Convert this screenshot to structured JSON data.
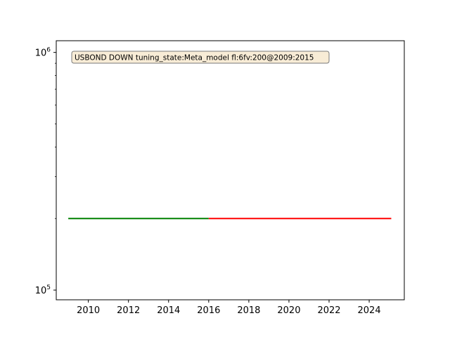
{
  "chart_data": {
    "type": "line",
    "title": "",
    "xlabel": "",
    "ylabel": "",
    "y_scale": "log",
    "xlim": [
      2008.4,
      2025.75
    ],
    "ylim": [
      91000,
      1120000
    ],
    "x_ticks": [
      2010,
      2012,
      2014,
      2016,
      2018,
      2020,
      2022,
      2024
    ],
    "x_tick_labels": [
      "2010",
      "2012",
      "2014",
      "2016",
      "2018",
      "2020",
      "2022",
      "2024"
    ],
    "y_ticks": [
      {
        "value": 100000,
        "base": "10",
        "exp": "5"
      },
      {
        "value": 1000000,
        "base": "10",
        "exp": "6"
      }
    ],
    "grid": false,
    "annotation": "USBOND DOWN tuning_state:Meta_model fl:6fv:200@2009:2015",
    "series": [
      {
        "color": "#008000",
        "x": [
          2009.0,
          2016.0
        ],
        "y": [
          200000,
          200000
        ]
      },
      {
        "color": "#ff0000",
        "x": [
          2016.0,
          2025.1
        ],
        "y": [
          200000,
          200000
        ]
      }
    ]
  }
}
